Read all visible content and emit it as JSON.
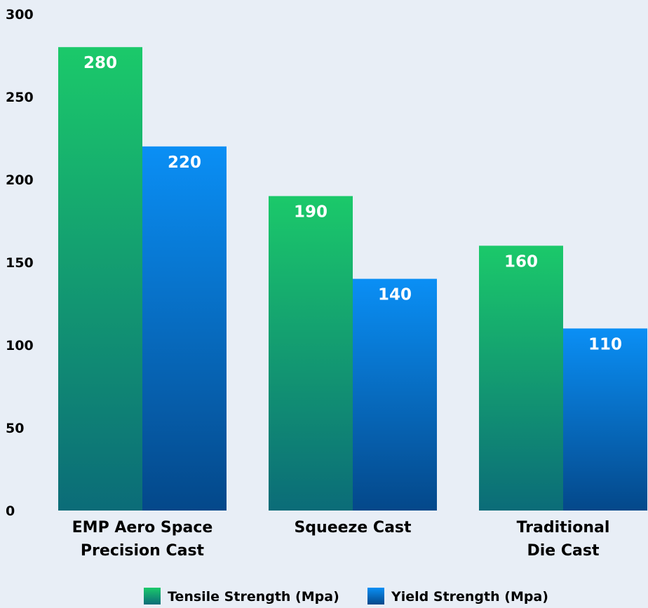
{
  "chart_data": {
    "type": "bar",
    "categories": [
      [
        "EMP Aero Space",
        "Precision Cast"
      ],
      [
        "Squeeze Cast"
      ],
      [
        "Traditional",
        "Die Cast"
      ]
    ],
    "series": [
      {
        "name": "Tensile Strength (Mpa)",
        "values": [
          280,
          190,
          160
        ],
        "color_top": "#1bc96a",
        "color_bottom": "#0b6c78"
      },
      {
        "name": "Yield Strength (Mpa)",
        "values": [
          220,
          140,
          110
        ],
        "color_top": "#0a8ff5",
        "color_bottom": "#04488a"
      }
    ],
    "yticks": [
      0,
      50,
      100,
      150,
      200,
      250,
      300
    ],
    "ylim": [
      0,
      300
    ],
    "grid": false,
    "legend_position": "bottom-center",
    "data_labels": true
  }
}
